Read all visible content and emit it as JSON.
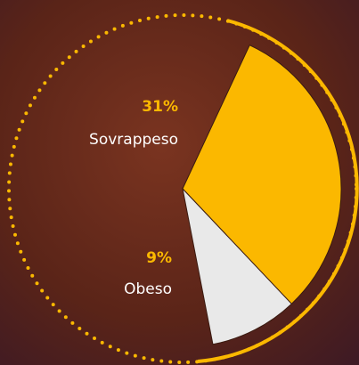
{
  "chart_data": {
    "type": "pie",
    "categories": [
      "Sovrappeso",
      "Obeso"
    ],
    "values": [
      31,
      9
    ],
    "value_labels": [
      "31%",
      "9%"
    ],
    "colors": [
      "#fbb800",
      "#e9e9e9"
    ]
  }
}
